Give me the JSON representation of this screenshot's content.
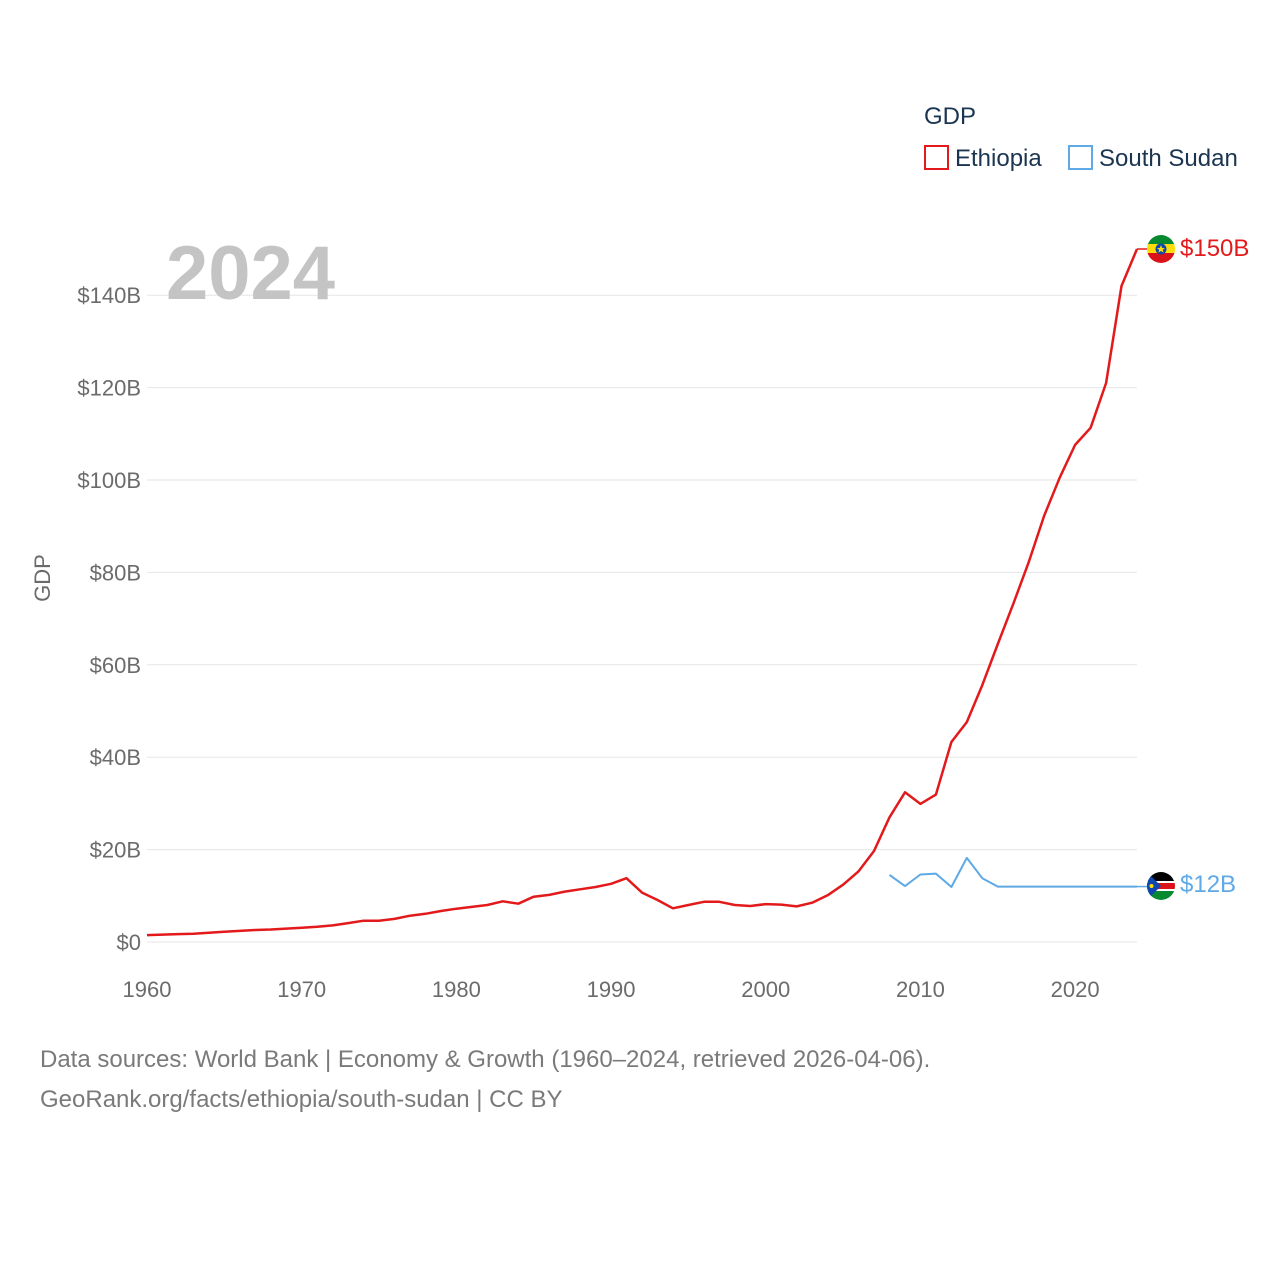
{
  "chart_data": {
    "type": "line",
    "title": "GDP",
    "ylabel": "GDP",
    "xlabel": "",
    "year_label": "2024",
    "xlim": [
      1960,
      2024
    ],
    "ylim": [
      0,
      140
    ],
    "x_ticks": [
      1960,
      1970,
      1980,
      1990,
      2000,
      2010,
      2020
    ],
    "x_tick_labels": [
      "1960",
      "1970",
      "1980",
      "1990",
      "2000",
      "2010",
      "2020"
    ],
    "y_ticks": [
      0,
      20,
      40,
      60,
      80,
      100,
      120,
      140
    ],
    "y_tick_labels": [
      "$0",
      "$20B",
      "$40B",
      "$60B",
      "$80B",
      "$100B",
      "$120B",
      "$140B"
    ],
    "grid": true,
    "legend": {
      "title": "GDP",
      "position": "top-right"
    },
    "series": [
      {
        "name": "Ethiopia",
        "color": "#e31a1c",
        "end_label": "$150B",
        "end_value": 150,
        "x": [
          1960,
          1961,
          1962,
          1963,
          1964,
          1965,
          1966,
          1967,
          1968,
          1969,
          1970,
          1971,
          1972,
          1973,
          1974,
          1975,
          1976,
          1977,
          1978,
          1979,
          1980,
          1981,
          1982,
          1983,
          1984,
          1985,
          1986,
          1987,
          1988,
          1989,
          1990,
          1991,
          1992,
          1993,
          1994,
          1995,
          1996,
          1997,
          1998,
          1999,
          2000,
          2001,
          2002,
          2003,
          2004,
          2005,
          2006,
          2007,
          2008,
          2009,
          2010,
          2011,
          2012,
          2013,
          2014,
          2015,
          2016,
          2017,
          2018,
          2019,
          2020,
          2021,
          2022,
          2023,
          2024
        ],
        "values": [
          1.5,
          1.6,
          1.7,
          1.8,
          2.0,
          2.2,
          2.4,
          2.6,
          2.7,
          2.9,
          3.1,
          3.3,
          3.6,
          4.1,
          4.6,
          4.6,
          5.0,
          5.7,
          6.1,
          6.7,
          7.2,
          7.6,
          8.0,
          8.8,
          8.3,
          9.8,
          10.2,
          10.9,
          11.4,
          11.9,
          12.6,
          13.8,
          10.7,
          9.1,
          7.3,
          8.0,
          8.7,
          8.7,
          8.0,
          7.8,
          8.2,
          8.1,
          7.7,
          8.5,
          10.1,
          12.4,
          15.3,
          19.7,
          27.0,
          32.4,
          29.9,
          31.9,
          43.3,
          47.6,
          55.6,
          64.5,
          73.2,
          82.2,
          92.3,
          100.5,
          107.6,
          111.3,
          121.0,
          142.0,
          150.0
        ]
      },
      {
        "name": "South Sudan",
        "color": "#5ea9e6",
        "end_label": "$12B",
        "end_value": 12,
        "x": [
          2008,
          2009,
          2010,
          2011,
          2012,
          2013,
          2014,
          2015,
          2016,
          2017,
          2018,
          2019,
          2020,
          2021,
          2022,
          2023,
          2024
        ],
        "values": [
          14.5,
          12.1,
          14.6,
          14.8,
          11.9,
          18.2,
          13.8,
          12.0,
          12.0,
          12.0,
          12.0,
          12.0,
          12.0,
          12.0,
          12.0,
          12.0,
          12.0
        ]
      }
    ]
  },
  "source": {
    "line1": "Data sources: World Bank | Economy & Growth (1960–2024, retrieved 2026-04-06).",
    "line2": "GeoRank.org/facts/ethiopia/south-sudan | CC BY"
  }
}
